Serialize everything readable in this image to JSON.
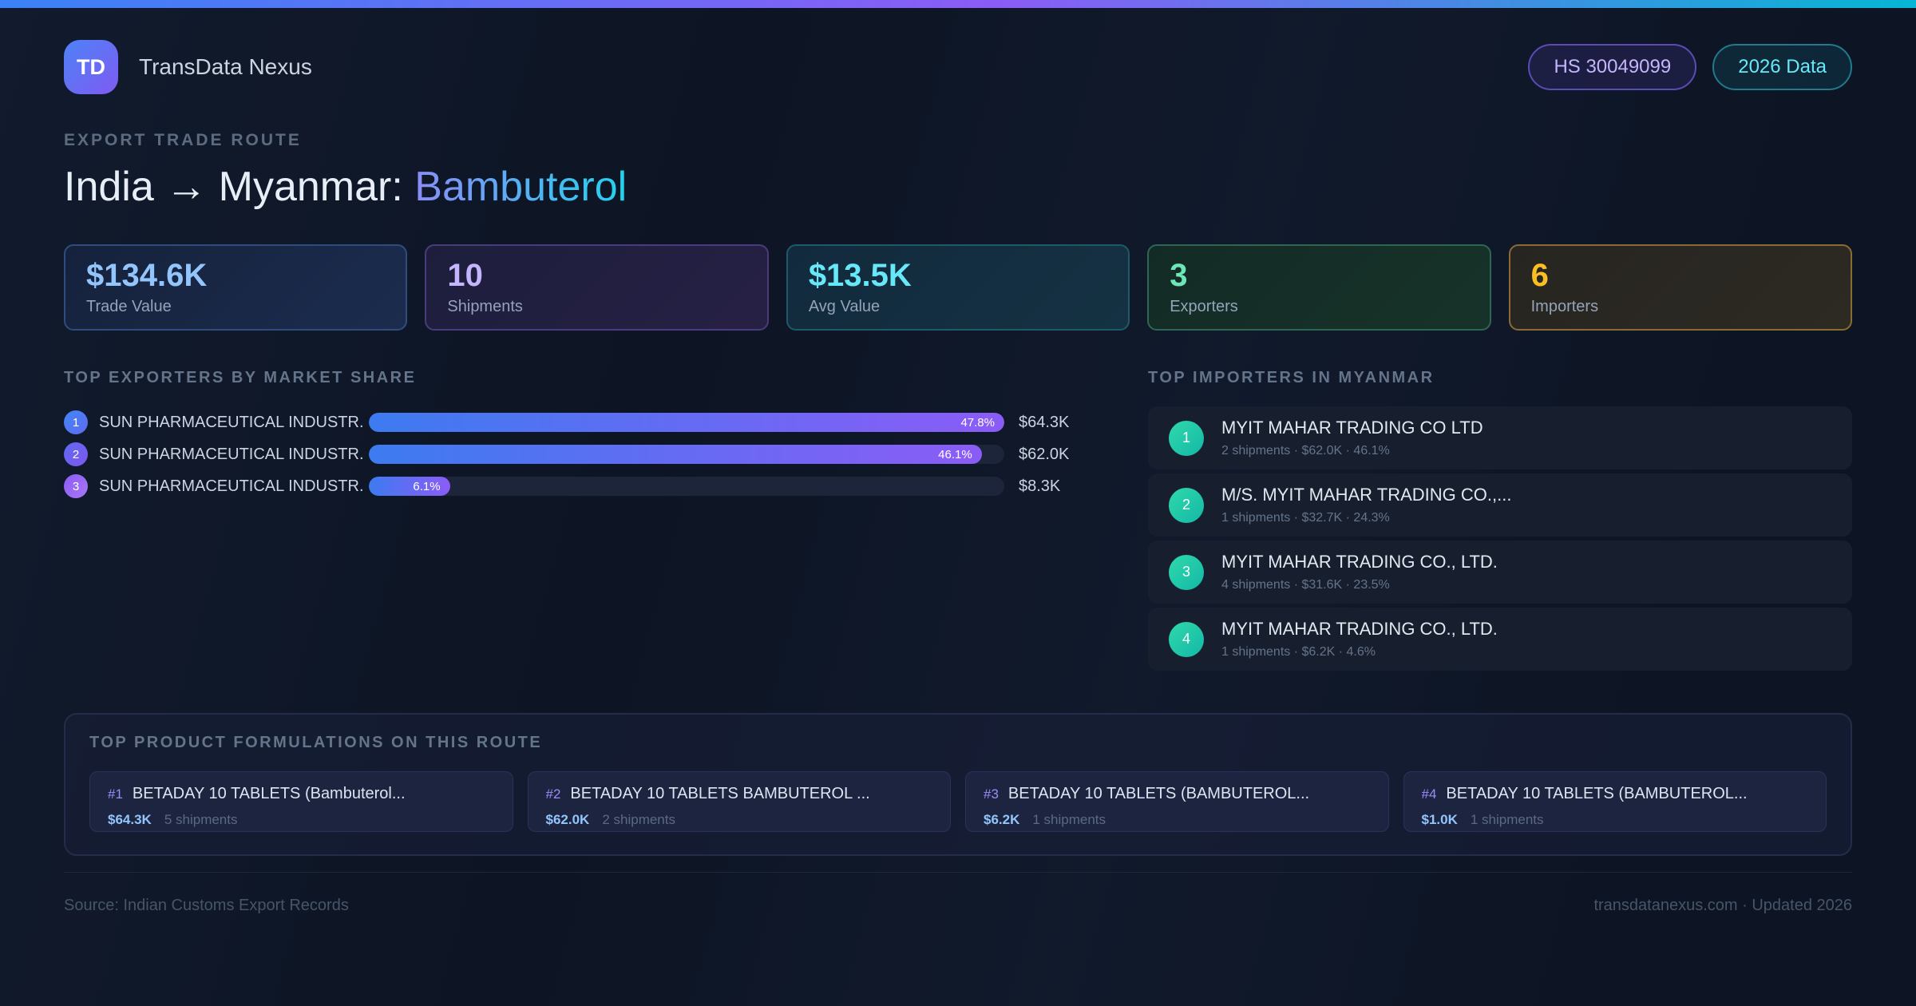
{
  "brand": {
    "logo_text": "TD",
    "name": "TransData Nexus"
  },
  "header_badges": {
    "hs_code": "HS 30049099",
    "data_year": "2026 Data"
  },
  "eyebrow": "EXPORT TRADE ROUTE",
  "title": {
    "route": "India → Myanmar:",
    "product": "Bambuterol"
  },
  "stats": [
    {
      "value": "$134.6K",
      "label": "Trade Value",
      "accent": "#93c5fd",
      "border": "#2e4d7e",
      "bg_from": "#16223c",
      "bg_to": "#1b2c4e"
    },
    {
      "value": "10",
      "label": "Shipments",
      "accent": "#c4b5fd",
      "border": "#4a3b7c",
      "bg_from": "#1d1e3c",
      "bg_to": "#262045"
    },
    {
      "value": "$13.5K",
      "label": "Avg Value",
      "accent": "#67e8f9",
      "border": "#1e5a68",
      "bg_from": "#122a3d",
      "bg_to": "#143243"
    },
    {
      "value": "3",
      "label": "Exporters",
      "accent": "#6ee7b7",
      "border": "#2e6653",
      "bg_from": "#132b26",
      "bg_to": "#173329"
    },
    {
      "value": "6",
      "label": "Importers",
      "accent": "#fbbf24",
      "border": "#8a6c33",
      "bg_from": "#272521",
      "bg_to": "#2d2a22"
    }
  ],
  "exporters": {
    "heading": "TOP EXPORTERS BY MARKET SHARE",
    "rows": [
      {
        "rank": "1",
        "name": "SUN PHARMACEUTICAL INDUSTR...",
        "share_pct": 47.8,
        "share_label": "47.8%",
        "value": "$64.3K",
        "badge_from": "#4186f5",
        "badge_to": "#5f6af0"
      },
      {
        "rank": "2",
        "name": "SUN PHARMACEUTICAL INDUSTR...",
        "share_pct": 46.1,
        "share_label": "46.1%",
        "value": "$62.0K",
        "badge_from": "#5f6af0",
        "badge_to": "#7e57ee"
      },
      {
        "rank": "3",
        "name": "SUN PHARMACEUTICAL INDUSTR...",
        "share_pct": 6.1,
        "share_label": "6.1%",
        "value": "$8.3K",
        "badge_from": "#8b5cf6",
        "badge_to": "#a877f5"
      }
    ]
  },
  "importers": {
    "heading": "TOP IMPORTERS IN MYANMAR",
    "items": [
      {
        "rank": "1",
        "name": "MYIT MAHAR TRADING CO LTD",
        "meta": "2 shipments · $62.0K · 46.1%"
      },
      {
        "rank": "2",
        "name": "M/S. MYIT MAHAR TRADING CO.,...",
        "meta": "1 shipments · $32.7K · 24.3%"
      },
      {
        "rank": "3",
        "name": "MYIT MAHAR TRADING CO., LTD.",
        "meta": "4 shipments · $31.6K · 23.5%"
      },
      {
        "rank": "4",
        "name": "MYIT MAHAR TRADING CO., LTD.",
        "meta": "1 shipments · $6.2K · 4.6%"
      }
    ]
  },
  "formulations": {
    "heading": "TOP PRODUCT FORMULATIONS ON THIS ROUTE",
    "cards": [
      {
        "rank": "#1",
        "name": "BETADAY 10 TABLETS (Bambuterol...",
        "value": "$64.3K",
        "shipments": "5 shipments"
      },
      {
        "rank": "#2",
        "name": "BETADAY 10 TABLETS BAMBUTEROL ...",
        "value": "$62.0K",
        "shipments": "2 shipments"
      },
      {
        "rank": "#3",
        "name": "BETADAY 10 TABLETS (BAMBUTEROL...",
        "value": "$6.2K",
        "shipments": "1 shipments"
      },
      {
        "rank": "#4",
        "name": "BETADAY 10 TABLETS (BAMBUTEROL...",
        "value": "$1.0K",
        "shipments": "1 shipments"
      }
    ]
  },
  "footer": {
    "source": "Source: Indian Customs Export Records",
    "site": "transdatanexus.com · Updated 2026"
  },
  "colors": {
    "topbar_gradient": [
      "#3b82f6",
      "#8b5cf6",
      "#06b6d4"
    ],
    "bar_fill_gradient": [
      "#3d7bf0",
      "#8b5cf6"
    ],
    "importer_badge_gradient": [
      "#2fd9ac",
      "#14b8a6"
    ],
    "product_title_gradient": [
      "#8b8cf8",
      "#22d3ee"
    ],
    "background": "#0d1524"
  }
}
